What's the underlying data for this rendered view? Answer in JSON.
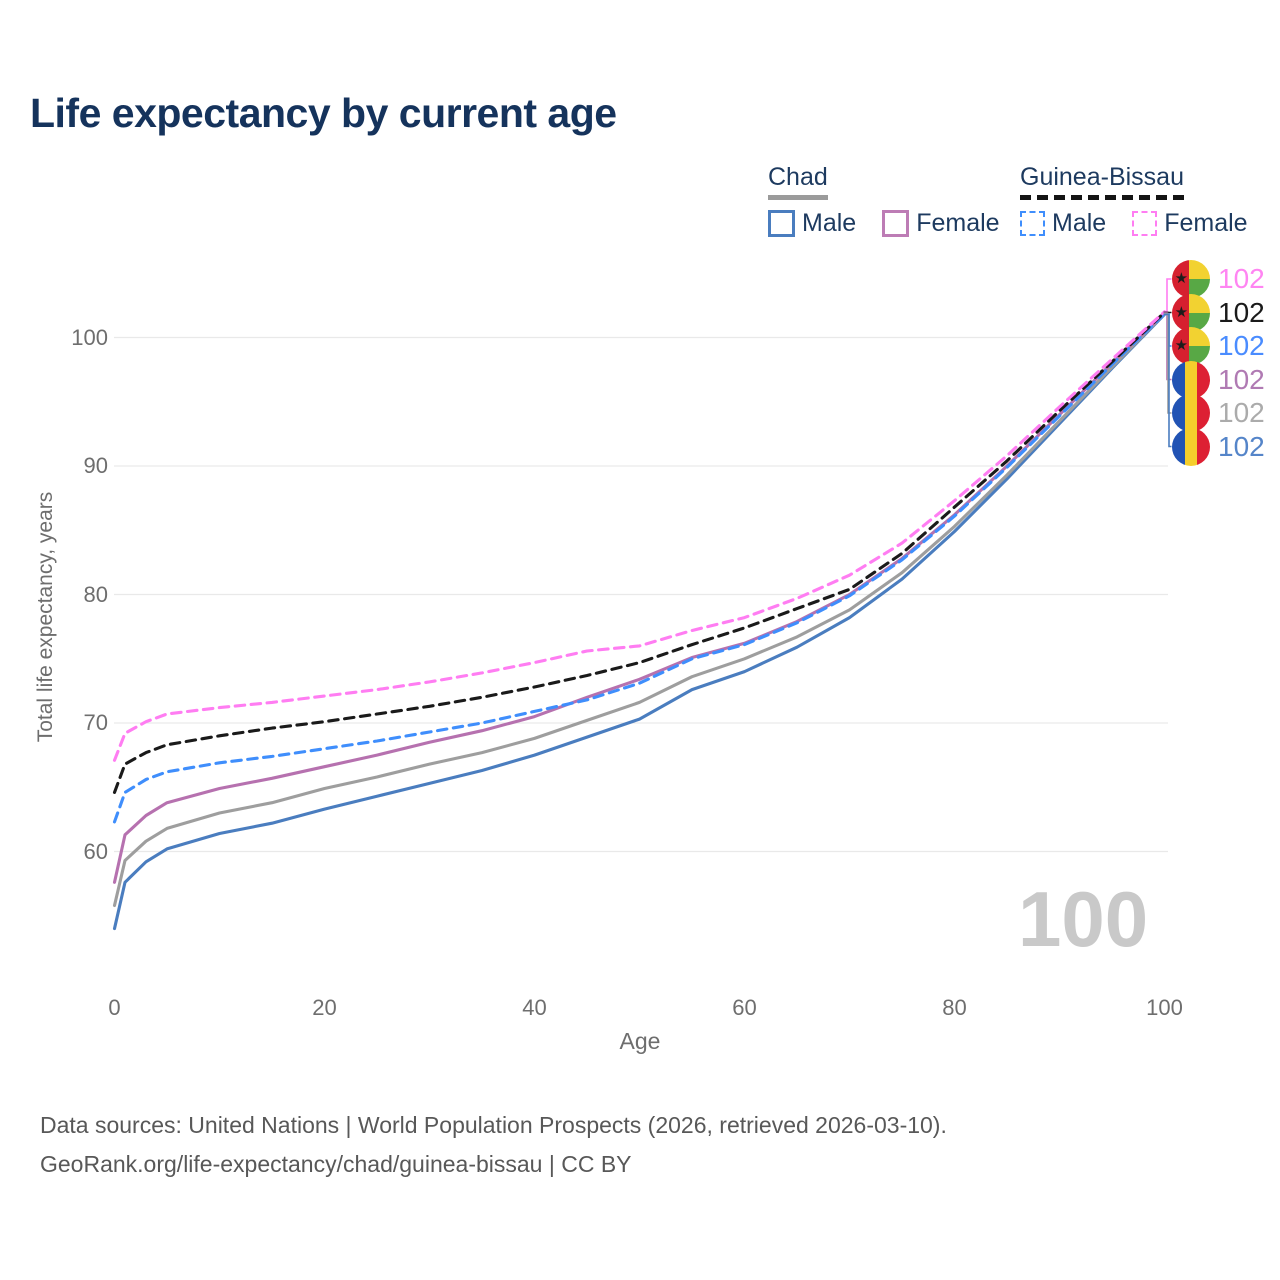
{
  "title": "Life expectancy by current age",
  "watermark_age": "100",
  "legend": {
    "groups": [
      {
        "label": "Chad",
        "line_style": "solid",
        "underline_color": "#9b9b9b",
        "items": [
          {
            "label": "Male",
            "color": "#4a7dbf"
          },
          {
            "label": "Female",
            "color": "#bd7cb5"
          }
        ]
      },
      {
        "label": "Guinea-Bissau",
        "line_style": "dashed",
        "underline_color": "#141414",
        "items": [
          {
            "label": "Male",
            "color": "#3f8efc"
          },
          {
            "label": "Female",
            "color": "#ff7df2"
          }
        ]
      }
    ]
  },
  "x_axis": {
    "label": "Age",
    "ticks": [
      0,
      20,
      40,
      60,
      80,
      100
    ],
    "range": [
      0,
      100
    ]
  },
  "y_axis": {
    "label": "Total life expectancy, years",
    "ticks": [
      60,
      70,
      80,
      90,
      100
    ]
  },
  "flags": {
    "gnb_star": "★"
  },
  "chart_data": {
    "type": "line",
    "title": "Life expectancy by current age",
    "xlabel": "Age",
    "ylabel": "Total life expectancy, years",
    "x_range": [
      0,
      100
    ],
    "grid": "horizontal",
    "x": [
      0,
      1,
      3,
      5,
      10,
      15,
      20,
      25,
      30,
      35,
      40,
      45,
      50,
      55,
      60,
      65,
      70,
      75,
      80,
      85,
      90,
      95,
      100
    ],
    "series": [
      {
        "name": "Chad Male",
        "country": "chad",
        "sex": "male",
        "color": "#4a7dbf",
        "dashed": false,
        "values": [
          54.0,
          57.6,
          59.2,
          60.2,
          61.4,
          62.2,
          63.3,
          64.3,
          65.3,
          66.3,
          67.5,
          68.9,
          70.3,
          72.6,
          74.0,
          75.9,
          78.2,
          81.2,
          84.9,
          89.0,
          93.3,
          97.6,
          101.8
        ]
      },
      {
        "name": "Chad Both sexes",
        "country": "chad",
        "sex": "both",
        "color": "#9e9e9e",
        "dashed": false,
        "values": [
          55.8,
          59.3,
          60.8,
          61.8,
          63.0,
          63.8,
          64.9,
          65.8,
          66.8,
          67.7,
          68.8,
          70.2,
          71.6,
          73.6,
          75.0,
          76.7,
          78.8,
          81.7,
          85.3,
          89.3,
          93.5,
          97.7,
          101.85
        ]
      },
      {
        "name": "Chad Female",
        "country": "chad",
        "sex": "female",
        "color": "#b671af",
        "dashed": false,
        "values": [
          57.6,
          61.3,
          62.8,
          63.8,
          64.9,
          65.7,
          66.6,
          67.5,
          68.5,
          69.4,
          70.5,
          72.0,
          73.4,
          75.1,
          76.2,
          77.9,
          80.0,
          82.8,
          86.2,
          90.0,
          94.0,
          98.0,
          101.9
        ]
      },
      {
        "name": "Guinea-Bissau Male",
        "country": "guinea-bissau",
        "sex": "male",
        "color": "#3f8efc",
        "dashed": true,
        "values": [
          62.3,
          64.6,
          65.6,
          66.2,
          66.9,
          67.4,
          68.0,
          68.6,
          69.3,
          70.0,
          70.9,
          71.8,
          73.1,
          75.0,
          76.1,
          77.8,
          79.9,
          82.7,
          86.1,
          89.9,
          93.9,
          97.9,
          101.85
        ]
      },
      {
        "name": "Guinea-Bissau Both sexes",
        "country": "guinea-bissau",
        "sex": "both",
        "color": "#1a1a1a",
        "dashed": true,
        "values": [
          64.6,
          66.8,
          67.7,
          68.3,
          69.0,
          69.6,
          70.1,
          70.7,
          71.3,
          72.0,
          72.8,
          73.7,
          74.7,
          76.1,
          77.4,
          78.9,
          80.4,
          83.2,
          86.8,
          90.4,
          94.3,
          98.1,
          101.95
        ]
      },
      {
        "name": "Guinea-Bissau Female",
        "country": "guinea-bissau",
        "sex": "female",
        "color": "#ff7df2",
        "dashed": true,
        "values": [
          67.1,
          69.2,
          70.1,
          70.7,
          71.2,
          71.6,
          72.1,
          72.6,
          73.2,
          73.9,
          74.7,
          75.6,
          76.0,
          77.2,
          78.2,
          79.7,
          81.5,
          84.0,
          87.3,
          90.8,
          94.6,
          98.3,
          102.0
        ]
      }
    ],
    "end_labels": [
      {
        "value": "102",
        "text_color": "#ff85f2",
        "flag": "guinea-bissau",
        "series_index": 5
      },
      {
        "value": "102",
        "text_color": "#1a1a1a",
        "flag": "guinea-bissau",
        "series_index": 4
      },
      {
        "value": "102",
        "text_color": "#4a8cff",
        "flag": "guinea-bissau",
        "series_index": 3
      },
      {
        "value": "102",
        "text_color": "#b07ab3",
        "flag": "chad",
        "series_index": 2
      },
      {
        "value": "102",
        "text_color": "#ababab",
        "flag": "chad",
        "series_index": 1
      },
      {
        "value": "102",
        "text_color": "#5585c9",
        "flag": "chad",
        "series_index": 0
      }
    ]
  },
  "footer": {
    "line1": "Data sources: United Nations | World Population Prospects (2026, retrieved 2026-03-10).",
    "line2": "GeoRank.org/life-expectancy/chad/guinea-bissau | CC BY"
  }
}
